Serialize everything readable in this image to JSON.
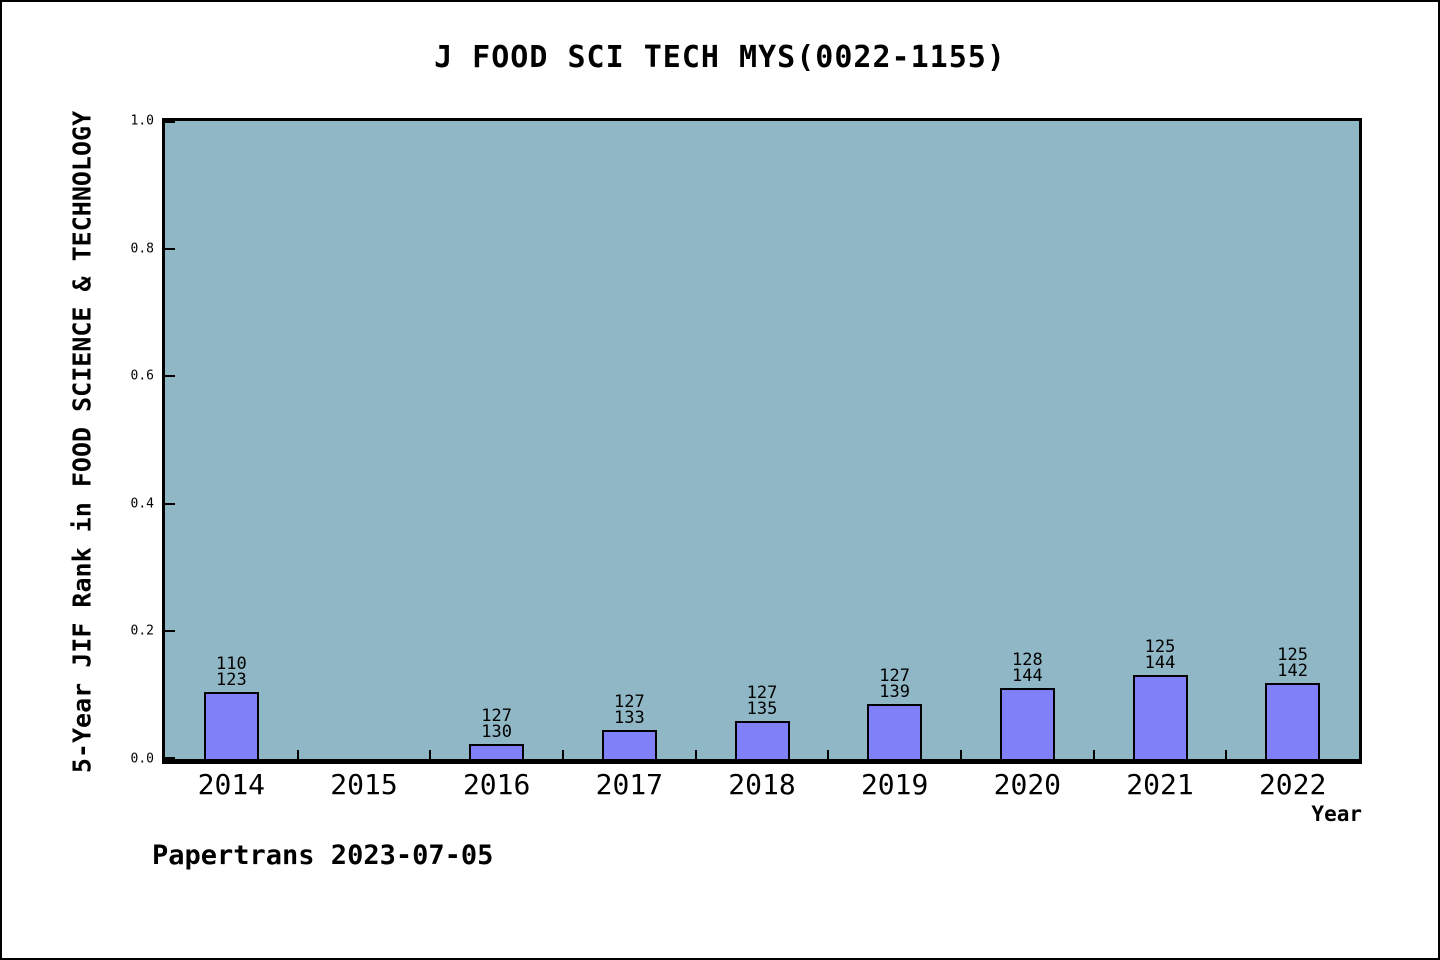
{
  "chart_data": {
    "type": "bar",
    "title": "J FOOD SCI TECH MYS(0022-1155)",
    "xlabel": "Year",
    "ylabel": "5-Year JIF Rank in FOOD SCIENCE & TECHNOLOGY",
    "ylim": [
      0.0,
      1.0
    ],
    "yticks": [
      "0.0",
      "0.2",
      "0.4",
      "0.6",
      "0.8",
      "1.0"
    ],
    "grid": false,
    "legend_position": "none",
    "categories": [
      "2014",
      "2015",
      "2016",
      "2017",
      "2018",
      "2019",
      "2020",
      "2021",
      "2022"
    ],
    "bars": [
      {
        "year": "2014",
        "rank": 110,
        "total": 123,
        "value": 0.1057
      },
      {
        "year": "2015",
        "rank": null,
        "total": null,
        "value": null
      },
      {
        "year": "2016",
        "rank": 127,
        "total": 130,
        "value": 0.0231
      },
      {
        "year": "2017",
        "rank": 127,
        "total": 133,
        "value": 0.0451
      },
      {
        "year": "2018",
        "rank": 127,
        "total": 135,
        "value": 0.0593
      },
      {
        "year": "2019",
        "rank": 127,
        "total": 139,
        "value": 0.0863
      },
      {
        "year": "2020",
        "rank": 128,
        "total": 144,
        "value": 0.1111
      },
      {
        "year": "2021",
        "rank": 125,
        "total": 144,
        "value": 0.1319
      },
      {
        "year": "2022",
        "rank": 125,
        "total": 142,
        "value": 0.1197
      }
    ],
    "bar_label_lines": [
      "rank",
      "total"
    ],
    "colors": {
      "plot_background": "#8fb7c5",
      "bar_fill": "#8080f8",
      "bar_border": "#000000",
      "axis": "#000000",
      "text": "#000000"
    }
  },
  "footer": {
    "text": "Papertrans 2023-07-05"
  }
}
